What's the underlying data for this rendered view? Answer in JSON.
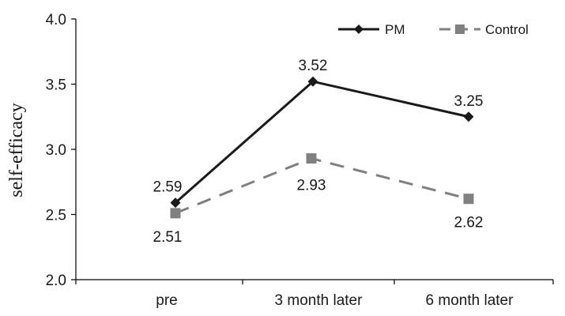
{
  "chart_data": {
    "type": "line",
    "title": "",
    "xlabel": "",
    "ylabel": "self-efficacy",
    "categories": [
      "pre",
      "3 month later",
      "6 month later"
    ],
    "ylim": [
      2.0,
      4.0
    ],
    "yticks": [
      "2.0",
      "2.5",
      "3.0",
      "3.5",
      "4.0"
    ],
    "grid": false,
    "legend_position": "top-right",
    "series": [
      {
        "name": "PM",
        "values": [
          2.59,
          3.52,
          3.25
        ],
        "labels": [
          "2.59",
          "3.52",
          "3.25"
        ],
        "color": "#1a1a1a",
        "marker": "diamond",
        "line_style": "solid"
      },
      {
        "name": "Control",
        "values": [
          2.51,
          2.93,
          2.62
        ],
        "labels": [
          "2.51",
          "2.93",
          "2.62"
        ],
        "color": "#808080",
        "marker": "square",
        "line_style": "dashed"
      }
    ]
  }
}
